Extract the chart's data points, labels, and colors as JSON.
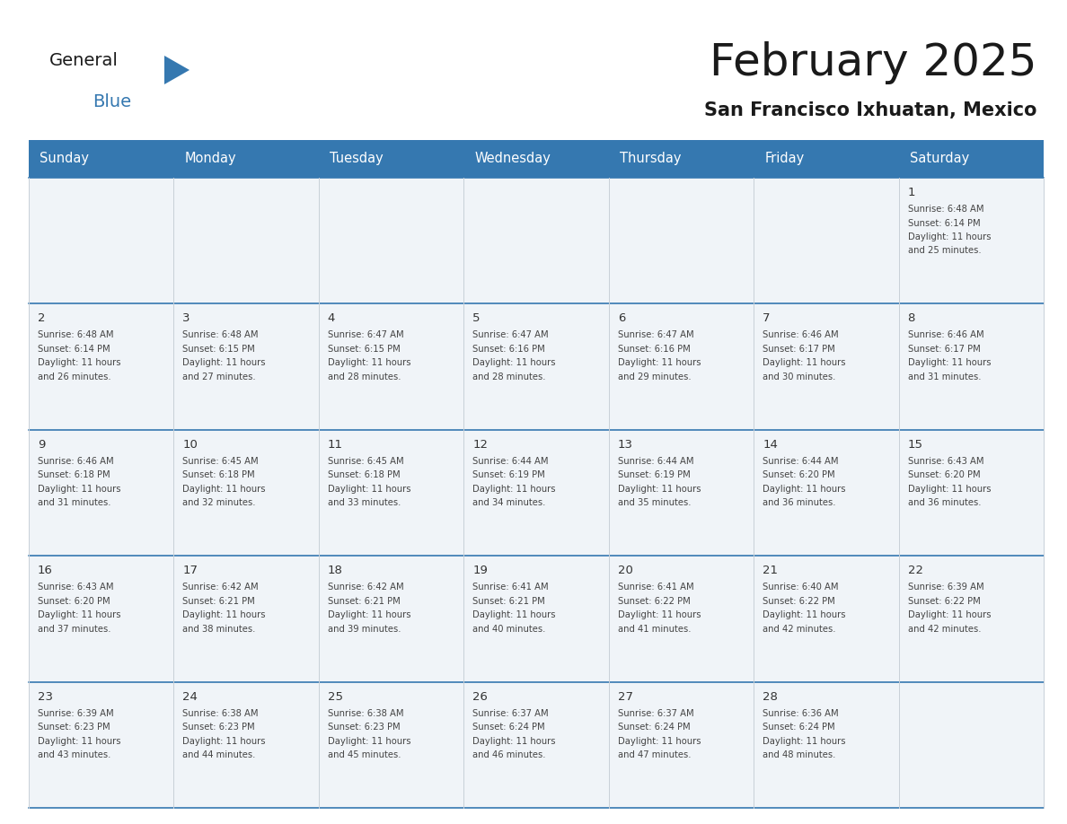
{
  "title": "February 2025",
  "subtitle": "San Francisco Ixhuatan, Mexico",
  "header_color": "#3578b0",
  "header_text_color": "#ffffff",
  "cell_bg": "#f0f4f8",
  "day_names": [
    "Sunday",
    "Monday",
    "Tuesday",
    "Wednesday",
    "Thursday",
    "Friday",
    "Saturday"
  ],
  "days": [
    {
      "day": 1,
      "col": 6,
      "row": 0,
      "sunrise": "6:48 AM",
      "sunset": "6:14 PM",
      "daylight": "11 hours and 25 minutes."
    },
    {
      "day": 2,
      "col": 0,
      "row": 1,
      "sunrise": "6:48 AM",
      "sunset": "6:14 PM",
      "daylight": "11 hours and 26 minutes."
    },
    {
      "day": 3,
      "col": 1,
      "row": 1,
      "sunrise": "6:48 AM",
      "sunset": "6:15 PM",
      "daylight": "11 hours and 27 minutes."
    },
    {
      "day": 4,
      "col": 2,
      "row": 1,
      "sunrise": "6:47 AM",
      "sunset": "6:15 PM",
      "daylight": "11 hours and 28 minutes."
    },
    {
      "day": 5,
      "col": 3,
      "row": 1,
      "sunrise": "6:47 AM",
      "sunset": "6:16 PM",
      "daylight": "11 hours and 28 minutes."
    },
    {
      "day": 6,
      "col": 4,
      "row": 1,
      "sunrise": "6:47 AM",
      "sunset": "6:16 PM",
      "daylight": "11 hours and 29 minutes."
    },
    {
      "day": 7,
      "col": 5,
      "row": 1,
      "sunrise": "6:46 AM",
      "sunset": "6:17 PM",
      "daylight": "11 hours and 30 minutes."
    },
    {
      "day": 8,
      "col": 6,
      "row": 1,
      "sunrise": "6:46 AM",
      "sunset": "6:17 PM",
      "daylight": "11 hours and 31 minutes."
    },
    {
      "day": 9,
      "col": 0,
      "row": 2,
      "sunrise": "6:46 AM",
      "sunset": "6:18 PM",
      "daylight": "11 hours and 31 minutes."
    },
    {
      "day": 10,
      "col": 1,
      "row": 2,
      "sunrise": "6:45 AM",
      "sunset": "6:18 PM",
      "daylight": "11 hours and 32 minutes."
    },
    {
      "day": 11,
      "col": 2,
      "row": 2,
      "sunrise": "6:45 AM",
      "sunset": "6:18 PM",
      "daylight": "11 hours and 33 minutes."
    },
    {
      "day": 12,
      "col": 3,
      "row": 2,
      "sunrise": "6:44 AM",
      "sunset": "6:19 PM",
      "daylight": "11 hours and 34 minutes."
    },
    {
      "day": 13,
      "col": 4,
      "row": 2,
      "sunrise": "6:44 AM",
      "sunset": "6:19 PM",
      "daylight": "11 hours and 35 minutes."
    },
    {
      "day": 14,
      "col": 5,
      "row": 2,
      "sunrise": "6:44 AM",
      "sunset": "6:20 PM",
      "daylight": "11 hours and 36 minutes."
    },
    {
      "day": 15,
      "col": 6,
      "row": 2,
      "sunrise": "6:43 AM",
      "sunset": "6:20 PM",
      "daylight": "11 hours and 36 minutes."
    },
    {
      "day": 16,
      "col": 0,
      "row": 3,
      "sunrise": "6:43 AM",
      "sunset": "6:20 PM",
      "daylight": "11 hours and 37 minutes."
    },
    {
      "day": 17,
      "col": 1,
      "row": 3,
      "sunrise": "6:42 AM",
      "sunset": "6:21 PM",
      "daylight": "11 hours and 38 minutes."
    },
    {
      "day": 18,
      "col": 2,
      "row": 3,
      "sunrise": "6:42 AM",
      "sunset": "6:21 PM",
      "daylight": "11 hours and 39 minutes."
    },
    {
      "day": 19,
      "col": 3,
      "row": 3,
      "sunrise": "6:41 AM",
      "sunset": "6:21 PM",
      "daylight": "11 hours and 40 minutes."
    },
    {
      "day": 20,
      "col": 4,
      "row": 3,
      "sunrise": "6:41 AM",
      "sunset": "6:22 PM",
      "daylight": "11 hours and 41 minutes."
    },
    {
      "day": 21,
      "col": 5,
      "row": 3,
      "sunrise": "6:40 AM",
      "sunset": "6:22 PM",
      "daylight": "11 hours and 42 minutes."
    },
    {
      "day": 22,
      "col": 6,
      "row": 3,
      "sunrise": "6:39 AM",
      "sunset": "6:22 PM",
      "daylight": "11 hours and 42 minutes."
    },
    {
      "day": 23,
      "col": 0,
      "row": 4,
      "sunrise": "6:39 AM",
      "sunset": "6:23 PM",
      "daylight": "11 hours and 43 minutes."
    },
    {
      "day": 24,
      "col": 1,
      "row": 4,
      "sunrise": "6:38 AM",
      "sunset": "6:23 PM",
      "daylight": "11 hours and 44 minutes."
    },
    {
      "day": 25,
      "col": 2,
      "row": 4,
      "sunrise": "6:38 AM",
      "sunset": "6:23 PM",
      "daylight": "11 hours and 45 minutes."
    },
    {
      "day": 26,
      "col": 3,
      "row": 4,
      "sunrise": "6:37 AM",
      "sunset": "6:24 PM",
      "daylight": "11 hours and 46 minutes."
    },
    {
      "day": 27,
      "col": 4,
      "row": 4,
      "sunrise": "6:37 AM",
      "sunset": "6:24 PM",
      "daylight": "11 hours and 47 minutes."
    },
    {
      "day": 28,
      "col": 5,
      "row": 4,
      "sunrise": "6:36 AM",
      "sunset": "6:24 PM",
      "daylight": "11 hours and 48 minutes."
    }
  ],
  "logo_color_general": "#1a1a1a",
  "logo_color_blue": "#3578b0",
  "logo_triangle_color": "#3578b0",
  "title_fontsize": 36,
  "subtitle_fontsize": 15,
  "day_name_fontsize": 10.5,
  "day_number_fontsize": 9.5,
  "cell_text_fontsize": 7.2,
  "cell_line_color": "#3578b0",
  "separator_color": "#3578b0",
  "vert_line_color": "#c8d0d8",
  "background_color": "#ffffff"
}
